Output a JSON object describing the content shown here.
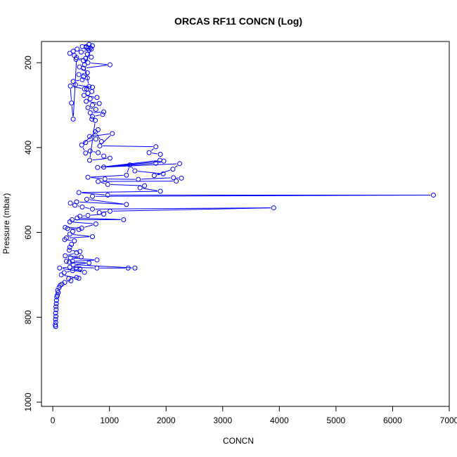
{
  "chart_data": {
    "type": "line",
    "title": "ORCAS RF11 CONCN (Log)",
    "xlabel": "CONCN",
    "ylabel": "Pressure (mbar)",
    "xlim": [
      -200,
      7000
    ],
    "ylim": [
      1010,
      150
    ],
    "y_reversed": true,
    "grid": false,
    "xticks": [
      0,
      1000,
      2000,
      3000,
      4000,
      5000,
      6000,
      7000
    ],
    "yticks": [
      200,
      400,
      600,
      800,
      1000
    ],
    "series": [
      {
        "color": "#0000ff",
        "marker": "open-circle",
        "points": [
          [
            50,
            822
          ],
          [
            45,
            818
          ],
          [
            52,
            812
          ],
          [
            48,
            805
          ],
          [
            55,
            798
          ],
          [
            50,
            790
          ],
          [
            58,
            782
          ],
          [
            55,
            775
          ],
          [
            62,
            768
          ],
          [
            65,
            760
          ],
          [
            70,
            752
          ],
          [
            80,
            748
          ],
          [
            95,
            742
          ],
          [
            85,
            737
          ],
          [
            110,
            730
          ],
          [
            130,
            725
          ],
          [
            160,
            722
          ],
          [
            210,
            718
          ],
          [
            320,
            714
          ],
          [
            280,
            709
          ],
          [
            420,
            706
          ],
          [
            460,
            708
          ],
          [
            150,
            700
          ],
          [
            200,
            695
          ],
          [
            350,
            690
          ],
          [
            480,
            686
          ],
          [
            420,
            684
          ],
          [
            560,
            694
          ],
          [
            120,
            684
          ],
          [
            300,
            682
          ],
          [
            780,
            684
          ],
          [
            1330,
            684
          ],
          [
            1450,
            684
          ],
          [
            360,
            676
          ],
          [
            640,
            672
          ],
          [
            290,
            670
          ],
          [
            240,
            668
          ],
          [
            350,
            668
          ],
          [
            780,
            665
          ],
          [
            310,
            660
          ],
          [
            500,
            658
          ],
          [
            220,
            655
          ],
          [
            420,
            648
          ],
          [
            480,
            645
          ],
          [
            290,
            642
          ],
          [
            300,
            635
          ],
          [
            330,
            628
          ],
          [
            380,
            620
          ],
          [
            210,
            617
          ],
          [
            240,
            613
          ],
          [
            700,
            610
          ],
          [
            300,
            604
          ],
          [
            350,
            598
          ],
          [
            460,
            593
          ],
          [
            260,
            591
          ],
          [
            220,
            588
          ],
          [
            510,
            590
          ],
          [
            760,
            580
          ],
          [
            300,
            575
          ],
          [
            340,
            570
          ],
          [
            1250,
            570
          ],
          [
            430,
            566
          ],
          [
            480,
            562
          ],
          [
            620,
            560
          ],
          [
            900,
            557
          ],
          [
            820,
            553
          ],
          [
            1010,
            550
          ],
          [
            3900,
            542
          ],
          [
            700,
            545
          ],
          [
            520,
            540
          ],
          [
            390,
            536
          ],
          [
            310,
            531
          ],
          [
            420,
            528
          ],
          [
            1300,
            534
          ],
          [
            600,
            522
          ],
          [
            700,
            515
          ],
          [
            6720,
            512
          ],
          [
            970,
            512
          ],
          [
            460,
            506
          ],
          [
            1900,
            503
          ],
          [
            1540,
            495
          ],
          [
            1620,
            490
          ],
          [
            970,
            487
          ],
          [
            800,
            480
          ],
          [
            2180,
            479
          ],
          [
            2270,
            472
          ],
          [
            2130,
            471
          ],
          [
            1510,
            475
          ],
          [
            920,
            474
          ],
          [
            620,
            470
          ],
          [
            1300,
            465
          ],
          [
            1360,
            441
          ],
          [
            1450,
            455
          ],
          [
            1950,
            462
          ],
          [
            1790,
            466
          ],
          [
            2120,
            451
          ],
          [
            2240,
            438
          ],
          [
            900,
            446
          ],
          [
            1820,
            437
          ],
          [
            1960,
            432
          ],
          [
            790,
            447
          ],
          [
            1890,
            430
          ],
          [
            1900,
            416
          ],
          [
            1700,
            412
          ],
          [
            1820,
            398
          ],
          [
            830,
            396
          ],
          [
            1050,
            367
          ],
          [
            650,
            374
          ],
          [
            580,
            388
          ],
          [
            760,
            380
          ],
          [
            860,
            386
          ],
          [
            750,
            363
          ],
          [
            800,
            358
          ],
          [
            510,
            394
          ],
          [
            580,
            413
          ],
          [
            660,
            408
          ],
          [
            800,
            412
          ],
          [
            900,
            420
          ],
          [
            1010,
            425
          ],
          [
            650,
            430
          ],
          [
            750,
            336
          ],
          [
            690,
            333
          ],
          [
            700,
            327
          ],
          [
            880,
            322
          ],
          [
            900,
            316
          ],
          [
            660,
            318
          ],
          [
            760,
            310
          ],
          [
            620,
            306
          ],
          [
            700,
            300
          ],
          [
            820,
            296
          ],
          [
            590,
            291
          ],
          [
            660,
            285
          ],
          [
            780,
            282
          ],
          [
            550,
            277
          ],
          [
            620,
            272
          ],
          [
            690,
            268
          ],
          [
            600,
            262
          ],
          [
            700,
            258
          ],
          [
            400,
            252
          ],
          [
            360,
            244
          ],
          [
            520,
            240
          ],
          [
            610,
            236
          ],
          [
            540,
            233
          ],
          [
            460,
            228
          ],
          [
            610,
            224
          ],
          [
            470,
            210
          ],
          [
            540,
            213
          ],
          [
            1010,
            205
          ],
          [
            620,
            200
          ],
          [
            540,
            195
          ],
          [
            410,
            192
          ],
          [
            580,
            190
          ],
          [
            680,
            187
          ],
          [
            610,
            180
          ],
          [
            500,
            175
          ],
          [
            640,
            170
          ],
          [
            660,
            165
          ],
          [
            590,
            162
          ],
          [
            700,
            160
          ],
          [
            640,
            157
          ],
          [
            520,
            162
          ],
          [
            430,
            168
          ],
          [
            360,
            173
          ],
          [
            300,
            178
          ],
          [
            380,
            183
          ],
          [
            420,
            188
          ],
          [
            360,
            333
          ],
          [
            330,
            295
          ],
          [
            310,
            255
          ],
          [
            560,
            262
          ],
          [
            640,
            256
          ],
          [
            560,
            205
          ],
          [
            680,
            168
          ],
          [
            620,
            166
          ],
          [
            590,
            164
          ]
        ]
      }
    ]
  }
}
